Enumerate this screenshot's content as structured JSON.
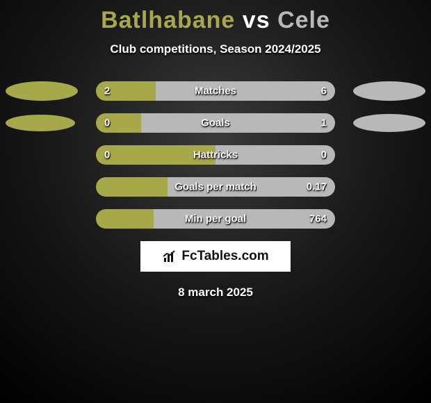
{
  "title": {
    "player1": "Batlhabane",
    "vs": "vs",
    "player2": "Cele",
    "player1_color": "#a7a84a",
    "vs_color": "#ffffff",
    "player2_color": "#b8b8b8"
  },
  "subtitle": "Club competitions, Season 2024/2025",
  "date": "8 march 2025",
  "bar_track_width": 344,
  "colors": {
    "left_fill": "#a7a84a",
    "right_fill": "#b8b8b8",
    "ellipse_left": "#a7a84a",
    "ellipse_right": "#b8b8b8"
  },
  "stats": [
    {
      "label": "Matches",
      "left_value": "2",
      "right_value": "6",
      "left_pct": 25,
      "right_pct": 75,
      "ellipse": {
        "show": true,
        "left_w": 104,
        "left_h": 28,
        "right_w": 104,
        "right_h": 28
      }
    },
    {
      "label": "Goals",
      "left_value": "0",
      "right_value": "1",
      "left_pct": 19,
      "right_pct": 81,
      "ellipse": {
        "show": true,
        "left_w": 100,
        "left_h": 24,
        "right_w": 104,
        "right_h": 26
      }
    },
    {
      "label": "Hattricks",
      "left_value": "0",
      "right_value": "0",
      "left_pct": 50,
      "right_pct": 50,
      "ellipse": {
        "show": false
      }
    },
    {
      "label": "Goals per match",
      "left_value": "",
      "right_value": "0.17",
      "left_pct": 30,
      "right_pct": 70,
      "ellipse": {
        "show": false
      }
    },
    {
      "label": "Min per goal",
      "left_value": "",
      "right_value": "764",
      "left_pct": 24,
      "right_pct": 76,
      "ellipse": {
        "show": false
      }
    }
  ],
  "watermark": {
    "text": "FcTables.com",
    "icon_color": "#111111"
  }
}
